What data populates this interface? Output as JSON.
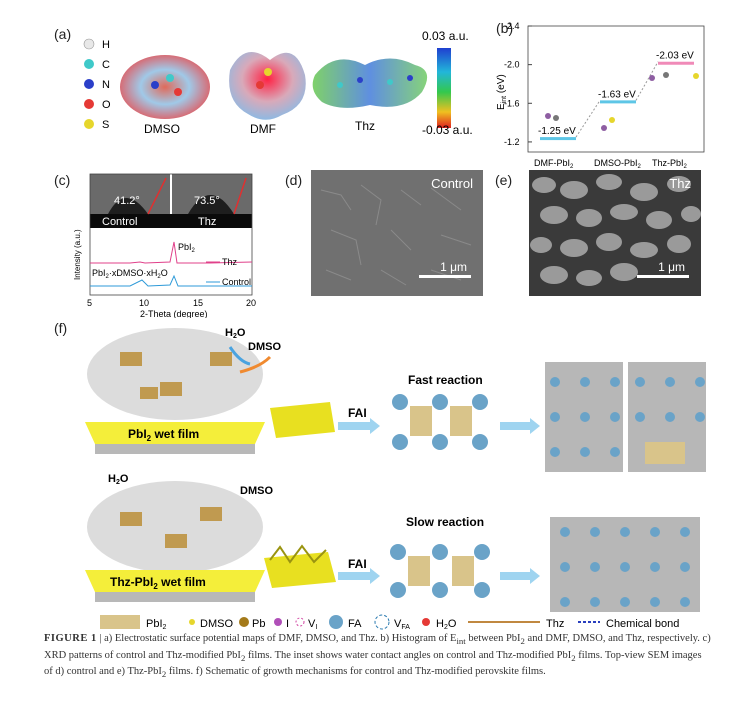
{
  "panel_labels": {
    "a": "(a)",
    "b": "(b)",
    "c": "(c)",
    "d": "(d)",
    "e": "(e)",
    "f": "(f)"
  },
  "panel_a": {
    "atoms": [
      {
        "symbol": "H",
        "color": "#e8e8e8"
      },
      {
        "symbol": "C",
        "color": "#3fc9c9"
      },
      {
        "symbol": "N",
        "color": "#2b3fc9"
      },
      {
        "symbol": "O",
        "color": "#e53935"
      },
      {
        "symbol": "S",
        "color": "#e6d62c"
      }
    ],
    "molecules": [
      "DMSO",
      "DMF",
      "Thz"
    ],
    "scale_max": "0.03 a.u.",
    "scale_min": "-0.03 a.u."
  },
  "panel_c": {
    "contact_angles": [
      {
        "value": "41.2°",
        "label": "Control"
      },
      {
        "value": "73.5°",
        "label": "Thz"
      }
    ],
    "ylabel": "Intensity (a.u.)",
    "xlabel": "2-Theta (degree)",
    "x_ticks": [
      "5",
      "10",
      "15",
      "20"
    ],
    "peak_label_pbi2": "PbI",
    "peak_label_pbi2_sub": "2",
    "peak_label_complex": "PbI",
    "peak_label_complex_sub": "2",
    "peak_label_complex_rest": "·xDMSO·xH",
    "peak_label_complex_sub2": "2",
    "peak_label_complex_end": "O",
    "legend": [
      {
        "name": "Thz",
        "color": "#e0408a"
      },
      {
        "name": "Control",
        "color": "#2e9ad8"
      }
    ]
  },
  "panel_d": {
    "label": "Control",
    "scale": "1 μm"
  },
  "panel_e": {
    "label": "Thz",
    "scale": "1 μm"
  },
  "panel_f": {
    "h2o_top": "H",
    "h2o_top_sub": "2",
    "h2o_top_end": "O",
    "dmso_top": "DMSO",
    "film_top": "PbI",
    "film_top_sub": "2",
    "film_top_end": " wet film",
    "fai_top": "FAI",
    "fast": "Fast reaction",
    "h2o_bot": "H",
    "h2o_bot_sub": "2",
    "h2o_bot_end": "O",
    "dmso_bot": "DMSO",
    "film_bot": "Thz-PbI",
    "film_bot_sub": "2",
    "film_bot_end": " wet film",
    "fai_bot": "FAI",
    "slow": "Slow reaction",
    "legend": {
      "pbi2": "PbI",
      "pbi2_sub": "2",
      "dmso": "DMSO",
      "pb": "Pb",
      "i": "I",
      "vi": "V",
      "vi_sub": "I",
      "fa": "FA",
      "vfa": "V",
      "vfa_sub": "FA",
      "h2o": "H",
      "h2o_sub": "2",
      "h2o_end": "O",
      "thz": "Thz",
      "bond": "Chemical bond"
    }
  },
  "caption": {
    "figure": "FIGURE 1",
    "sep": "|",
    "text": "a) Electrostatic surface potential maps of DMF, DMSO, and Thz. b) Histogram of E",
    "sub": "int",
    "text2": " between PbI",
    "sub2": "2",
    "text3": " and DMF, DMSO, and Thz, respectively. c) XRD patterns of control and Thz-modified PbI",
    "sub3": "2",
    "text4": " films. The inset shows water contact angles on control and Thz-modified PbI",
    "sub4": "2",
    "text5": " films. Top-view SEM images of d) control and e) Thz-PbI",
    "sub5": "2",
    "text6": " films. f) Schematic of growth mechanisms for control and Thz-modified perovskite films."
  },
  "chart_data": {
    "type": "scatter",
    "ylabel": "E_int (eV)",
    "ylim": [
      -1.2,
      -2.4
    ],
    "y_ticks": [
      "-2.4",
      "-2.0",
      "-1.6",
      "-1.2"
    ],
    "categories": [
      "DMF-PbI2",
      "DMSO-PbI2",
      "Thz-PbI2"
    ],
    "category_labels": [
      {
        "main": "DMF-PbI",
        "sub": "2"
      },
      {
        "main": "DMSO-PbI",
        "sub": "2"
      },
      {
        "main": "Thz-PbI",
        "sub": "2"
      }
    ],
    "values": [
      -1.25,
      -1.63,
      -2.03
    ],
    "value_labels": [
      "-1.25 eV",
      "-1.63 eV",
      "-2.03 eV"
    ],
    "level_colors": [
      "#5ec6e6",
      "#5ec6e6",
      "#f08ab8"
    ]
  }
}
